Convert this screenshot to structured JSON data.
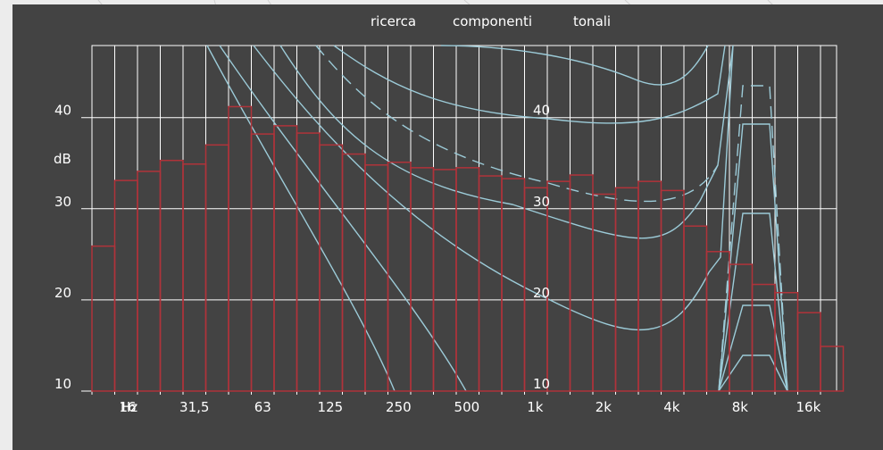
{
  "chart_data": {
    "type": "bar",
    "title_words": [
      "ricerca",
      "componenti",
      "tonali"
    ],
    "ylabel": "dB",
    "xlabel": "Hz",
    "ylim": [
      10,
      48
    ],
    "y_ticks": [
      "10",
      "20",
      "30",
      "40"
    ],
    "x_axis_scale": "log2, one-third-octave bands",
    "x_ticks": [
      {
        "label": "16",
        "hz": 16
      },
      {
        "label": "31,5",
        "hz": 31.5
      },
      {
        "label": "63",
        "hz": 63
      },
      {
        "label": "125",
        "hz": 125
      },
      {
        "label": "250",
        "hz": 250
      },
      {
        "label": "500",
        "hz": 500
      },
      {
        "label": "1k",
        "hz": 1000
      },
      {
        "label": "2k",
        "hz": 2000
      },
      {
        "label": "4k",
        "hz": 4000
      },
      {
        "label": "8k",
        "hz": 8000
      },
      {
        "label": "16k",
        "hz": 16000
      }
    ],
    "bands_hz": [
      12.5,
      16,
      20,
      25,
      31.5,
      40,
      50,
      63,
      80,
      100,
      125,
      160,
      200,
      250,
      315,
      400,
      500,
      630,
      800,
      1000,
      1250,
      1600,
      2000,
      2500,
      3150,
      4000,
      5000,
      6300,
      8000,
      10000,
      12500,
      16000,
      20000
    ],
    "values_db": [
      25.9,
      33.1,
      34.1,
      35.3,
      34.9,
      37.0,
      41.2,
      38.2,
      39.1,
      38.3,
      37.0,
      36.0,
      34.8,
      35.1,
      34.5,
      34.3,
      34.5,
      33.6,
      33.3,
      32.3,
      33.0,
      33.7,
      31.6,
      32.3,
      33.0,
      32.0,
      28.1,
      25.3,
      23.9,
      21.7,
      20.8,
      18.6,
      14.9
    ],
    "curve_labels": [
      "10",
      "20",
      "30",
      "40"
    ],
    "colors": {
      "panel": "#434343",
      "grid": "#ffffff",
      "bars": "#b0333a",
      "curves": "#9ccbd8",
      "text": "#ffffff"
    }
  }
}
